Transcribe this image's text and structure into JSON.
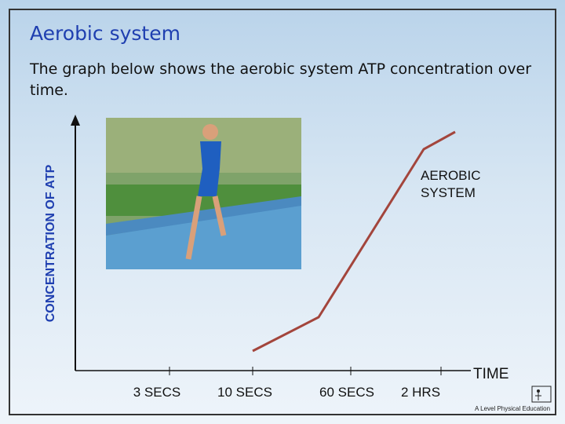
{
  "slide": {
    "title": "Aerobic system",
    "text": "The graph below shows the aerobic system ATP concentration over time.",
    "graph": {
      "y_axis_label": "CONCENTRATION OF ATP",
      "x_axis_label": "TIME",
      "x_labels": [
        "3 SECS",
        "10 SECS",
        "60 SECS",
        "2 HRS"
      ],
      "curve_label": "AEROBIC SYSTEM"
    },
    "footer": "A Level Physical Education"
  }
}
